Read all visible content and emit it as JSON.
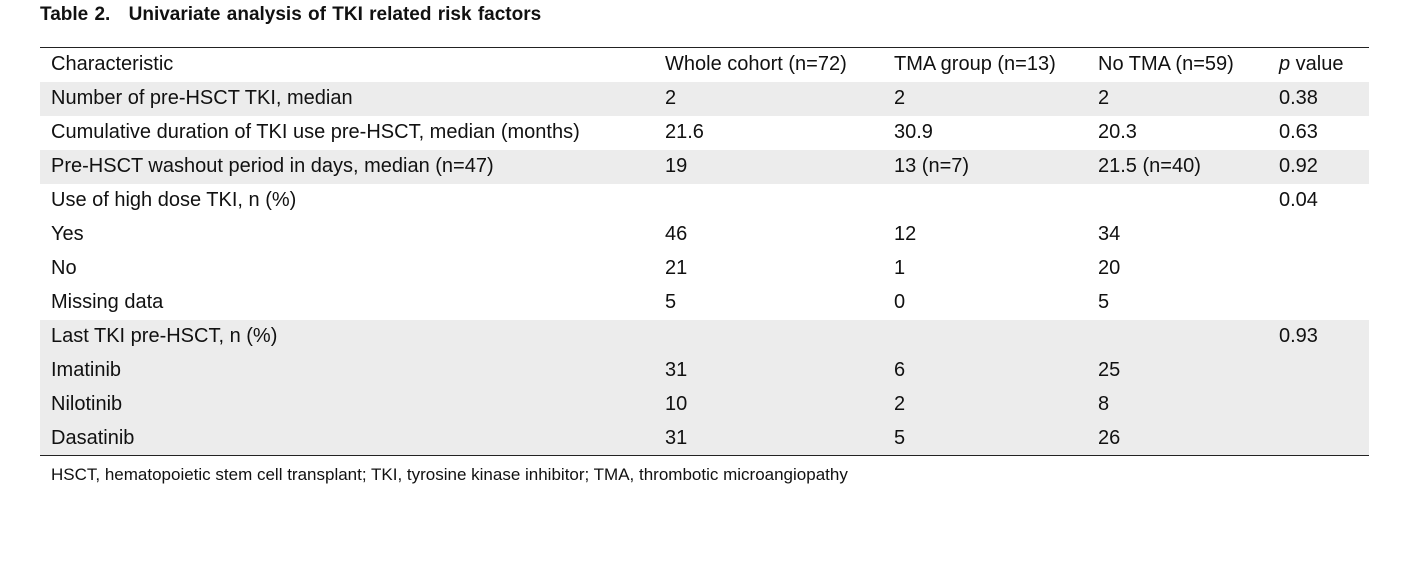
{
  "caption": {
    "label": "Table 2.",
    "title": "Univariate analysis of TKI related risk factors"
  },
  "table": {
    "headers": {
      "characteristic": "Characteristic",
      "whole": "Whole cohort (n=72)",
      "tma": "TMA group (n=13)",
      "no_tma": "No TMA (n=59)",
      "p_italic": "p",
      "p_rest": " value"
    },
    "rows": [
      {
        "characteristic": "Number of pre-HSCT TKI, median",
        "whole": "2",
        "tma": "2",
        "no_tma": "2",
        "p": "0.38"
      },
      {
        "characteristic": "Cumulative duration of TKI use pre-HSCT, median (months)",
        "whole": "21.6",
        "tma": "30.9",
        "no_tma": "20.3",
        "p": "0.63"
      },
      {
        "characteristic": "Pre-HSCT washout period in days, median (n=47)",
        "whole": "19",
        "tma": "13 (n=7)",
        "no_tma": "21.5 (n=40)",
        "p": "0.92"
      },
      {
        "characteristic": "Use of high dose TKI, n (%)",
        "whole": "",
        "tma": "",
        "no_tma": "",
        "p": "0.04"
      },
      {
        "characteristic": "Yes",
        "whole": "46",
        "tma": "12",
        "no_tma": "34",
        "p": ""
      },
      {
        "characteristic": "No",
        "whole": "21",
        "tma": "1",
        "no_tma": "20",
        "p": ""
      },
      {
        "characteristic": "Missing data",
        "whole": "5",
        "tma": "0",
        "no_tma": "5",
        "p": ""
      },
      {
        "characteristic": "Last TKI pre-HSCT, n (%)",
        "whole": "",
        "tma": "",
        "no_tma": "",
        "p": "0.93"
      },
      {
        "characteristic": "Imatinib",
        "whole": "31",
        "tma": "6",
        "no_tma": "25",
        "p": ""
      },
      {
        "characteristic": "Nilotinib",
        "whole": "10",
        "tma": "2",
        "no_tma": "8",
        "p": ""
      },
      {
        "characteristic": "Dasatinib",
        "whole": "31",
        "tma": "5",
        "no_tma": "26",
        "p": ""
      }
    ]
  },
  "footnote": "HSCT, hematopoietic stem cell transplant; TKI, tyrosine kinase inhibitor; TMA, thrombotic microangiopathy"
}
